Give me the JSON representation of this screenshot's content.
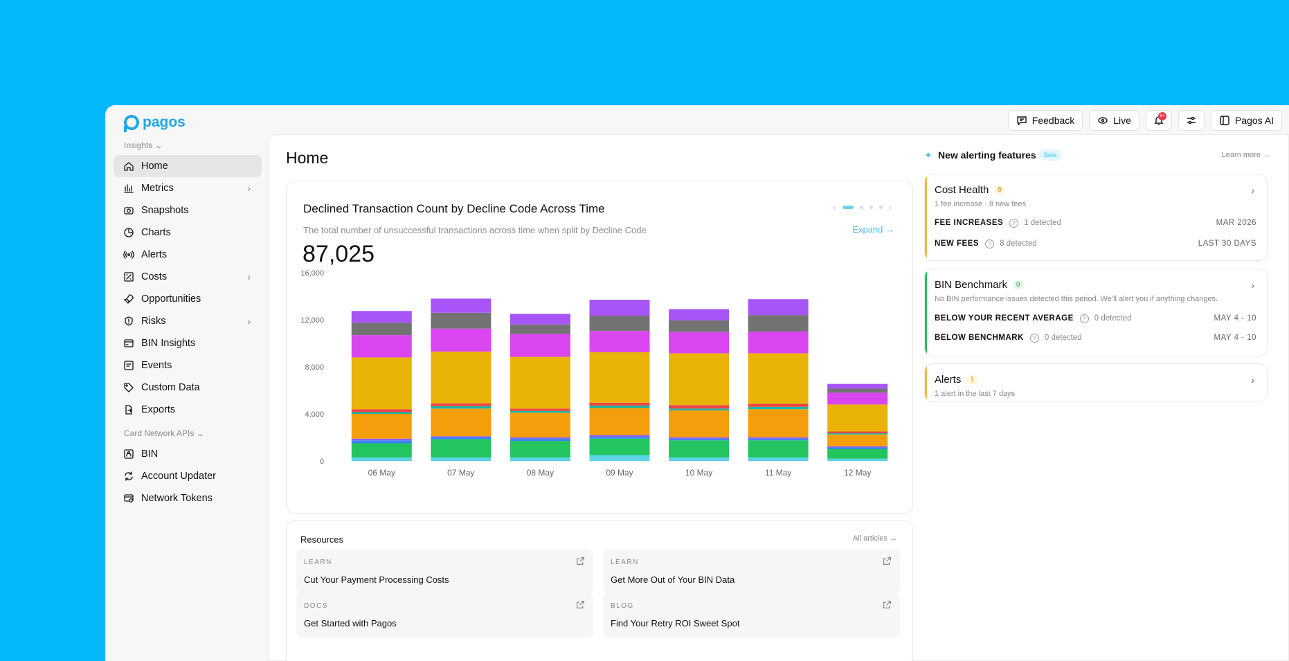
{
  "brand": {
    "name": "pagos"
  },
  "topbar": {
    "feedback": "Feedback",
    "live": "Live",
    "notif_badge": "9+",
    "pagos_ai": "Pagos AI"
  },
  "sidebar": {
    "section1": "Insights",
    "items1": [
      {
        "label": "Home",
        "icon": "home-icon"
      },
      {
        "label": "Metrics",
        "icon": "metrics-icon"
      },
      {
        "label": "Snapshots",
        "icon": "camera-icon"
      },
      {
        "label": "Charts",
        "icon": "pie-chart-icon"
      },
      {
        "label": "Alerts",
        "icon": "broadcast-icon"
      },
      {
        "label": "Costs",
        "icon": "costs-icon"
      },
      {
        "label": "Opportunities",
        "icon": "rocket-icon"
      },
      {
        "label": "Risks",
        "icon": "shield-icon"
      },
      {
        "label": "BIN Insights",
        "icon": "card-icon"
      },
      {
        "label": "Events",
        "icon": "events-icon"
      },
      {
        "label": "Custom Data",
        "icon": "tag-icon"
      },
      {
        "label": "Exports",
        "icon": "file-export-icon"
      }
    ],
    "section2": "Card Network APIs",
    "items2": [
      {
        "label": "BIN",
        "icon": "bin-icon"
      },
      {
        "label": "Account Updater",
        "icon": "refresh-icon"
      },
      {
        "label": "Network Tokens",
        "icon": "token-icon"
      }
    ]
  },
  "main": {
    "title": "Home",
    "chart": {
      "title": "Declined Transaction Count by Decline Code Across Time",
      "subtitle": "The total number of unsuccessful transactions across time when split by Decline Code",
      "total": "87,025",
      "expand": "Expand"
    },
    "resources": {
      "title": "Resources",
      "all": "All articles",
      "items": [
        {
          "tag": "LEARN",
          "title": "Cut Your Payment Processing Costs"
        },
        {
          "tag": "LEARN",
          "title": "Get More Out of Your BIN Data"
        },
        {
          "tag": "DOCS",
          "title": "Get Started with Pagos"
        },
        {
          "tag": "BLOG",
          "title": "Find Your Retry ROI Sweet Spot"
        }
      ]
    }
  },
  "alerting": {
    "title": "New alerting features",
    "beta": "Beta",
    "learn_more": "Learn more",
    "cost_health": {
      "title": "Cost Health",
      "count": "9",
      "sub": "1 fee increase · 8 new fees",
      "rows": [
        {
          "label": "FEE INCREASES",
          "detected": "1 detected",
          "when": "MAR 2026"
        },
        {
          "label": "NEW FEES",
          "detected": "8 detected",
          "when": "LAST 30 DAYS"
        }
      ]
    },
    "bin_benchmark": {
      "title": "BIN Benchmark",
      "count": "0",
      "sub": "No BIN performance issues detected this period. We'll alert you if anything changes.",
      "rows": [
        {
          "label": "BELOW YOUR RECENT AVERAGE",
          "detected": "0 detected",
          "when": "MAY 4 - 10"
        },
        {
          "label": "BELOW BENCHMARK",
          "detected": "0 detected",
          "when": "MAY 4 - 10"
        }
      ]
    },
    "alerts": {
      "title": "Alerts",
      "count": "1",
      "sub": "1 alert in the last 7 days"
    }
  },
  "colors": {
    "accent": "#1fa6e6",
    "warning": "#f6b73c",
    "success": "#22c55e"
  },
  "chart_data": {
    "type": "bar",
    "stacked": true,
    "categories": [
      "06 May",
      "07 May",
      "08 May",
      "09 May",
      "10 May",
      "11 May",
      "12 May"
    ],
    "yticks": [
      0,
      4000,
      8000,
      12000,
      16000
    ],
    "ytick_labels": [
      "0",
      "4,000",
      "8,000",
      "12,000",
      "16,000"
    ],
    "ylim": [
      0,
      16000
    ],
    "grid": false,
    "series": [
      {
        "color": "#5dd3e6",
        "values": [
          300,
          300,
          300,
          500,
          300,
          300,
          200
        ]
      },
      {
        "color": "#22c55e",
        "values": [
          1200,
          1550,
          1400,
          1400,
          1450,
          1450,
          800
        ]
      },
      {
        "color": "#3b82f6",
        "values": [
          250,
          150,
          200,
          150,
          150,
          150,
          150
        ]
      },
      {
        "color": "#8b5cf6",
        "values": [
          150,
          100,
          100,
          150,
          100,
          100,
          100
        ]
      },
      {
        "color": "#f59e0b",
        "values": [
          2100,
          2350,
          2100,
          2300,
          2300,
          2400,
          1000
        ]
      },
      {
        "color": "#14b8a6",
        "values": [
          150,
          200,
          150,
          200,
          150,
          200,
          100
        ]
      },
      {
        "color": "#ef4444",
        "values": [
          250,
          250,
          200,
          250,
          300,
          250,
          150
        ]
      },
      {
        "color": "#eab308",
        "values": [
          4400,
          4400,
          4400,
          4300,
          4400,
          4300,
          2300
        ]
      },
      {
        "color": "#d946ef",
        "values": [
          1900,
          1950,
          1950,
          1800,
          1800,
          1850,
          1000
        ]
      },
      {
        "color": "#737373",
        "values": [
          1050,
          1350,
          800,
          1300,
          1000,
          1400,
          350
        ]
      },
      {
        "color": "#a855f7",
        "values": [
          1000,
          1200,
          900,
          1350,
          950,
          1350,
          400
        ]
      }
    ]
  }
}
